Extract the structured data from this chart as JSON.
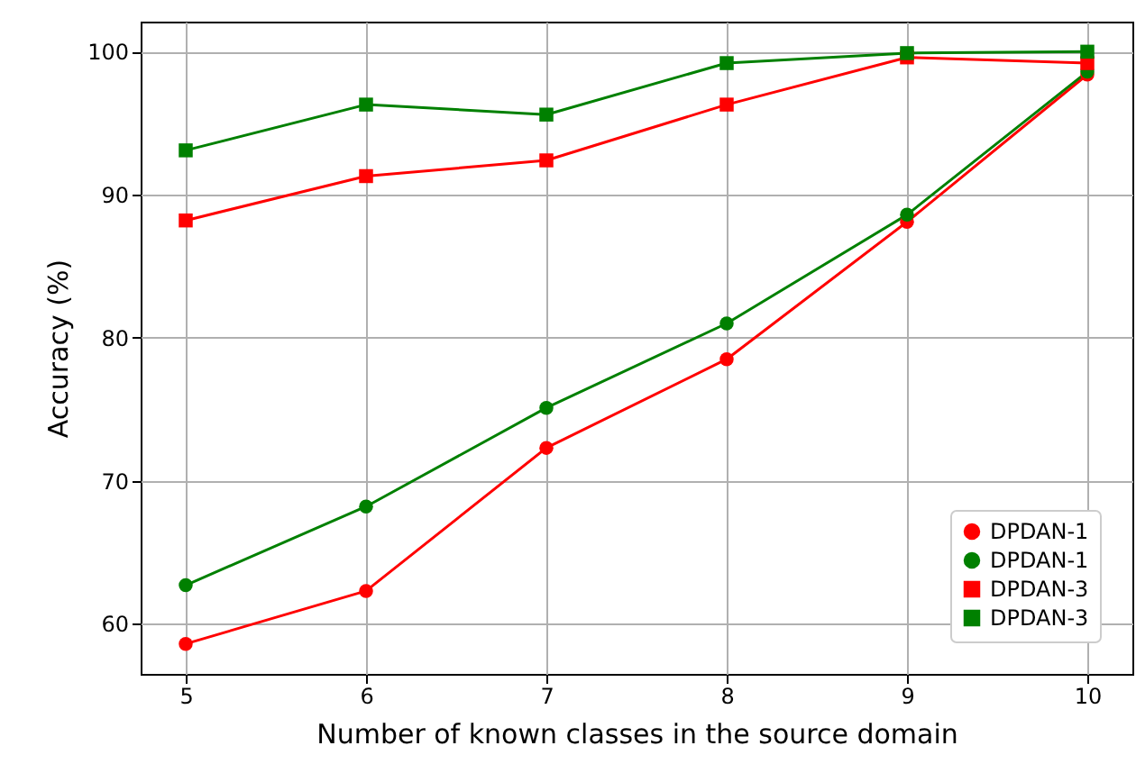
{
  "chart_data": {
    "type": "line",
    "xlabel": "Number of known classes in the source domain",
    "ylabel": "Accuracy (%)",
    "x": [
      5,
      6,
      7,
      8,
      9,
      10
    ],
    "series": [
      {
        "name": "DPDAN-1",
        "color": "#ff0000",
        "marker": "circle",
        "values": [
          58.6,
          62.3,
          72.3,
          78.5,
          88.1,
          98.4
        ]
      },
      {
        "name": "DPDAN-1",
        "color": "#008000",
        "marker": "circle",
        "values": [
          62.7,
          68.2,
          75.1,
          81.0,
          88.6,
          98.6
        ]
      },
      {
        "name": "DPDAN-3",
        "color": "#ff0000",
        "marker": "square",
        "values": [
          88.2,
          91.3,
          92.4,
          96.3,
          99.6,
          99.2
        ]
      },
      {
        "name": "DPDAN-3",
        "color": "#008000",
        "marker": "square",
        "values": [
          93.1,
          96.3,
          95.6,
          99.2,
          99.9,
          100.0
        ]
      }
    ],
    "xlim": [
      4.75,
      10.25
    ],
    "xticks": [
      5,
      6,
      7,
      8,
      9,
      10
    ],
    "ylim": [
      56.5,
      102.1
    ],
    "yticks": [
      60,
      70,
      80,
      90,
      100
    ],
    "grid": true,
    "legend": "bottom right",
    "line_style": "solid"
  }
}
